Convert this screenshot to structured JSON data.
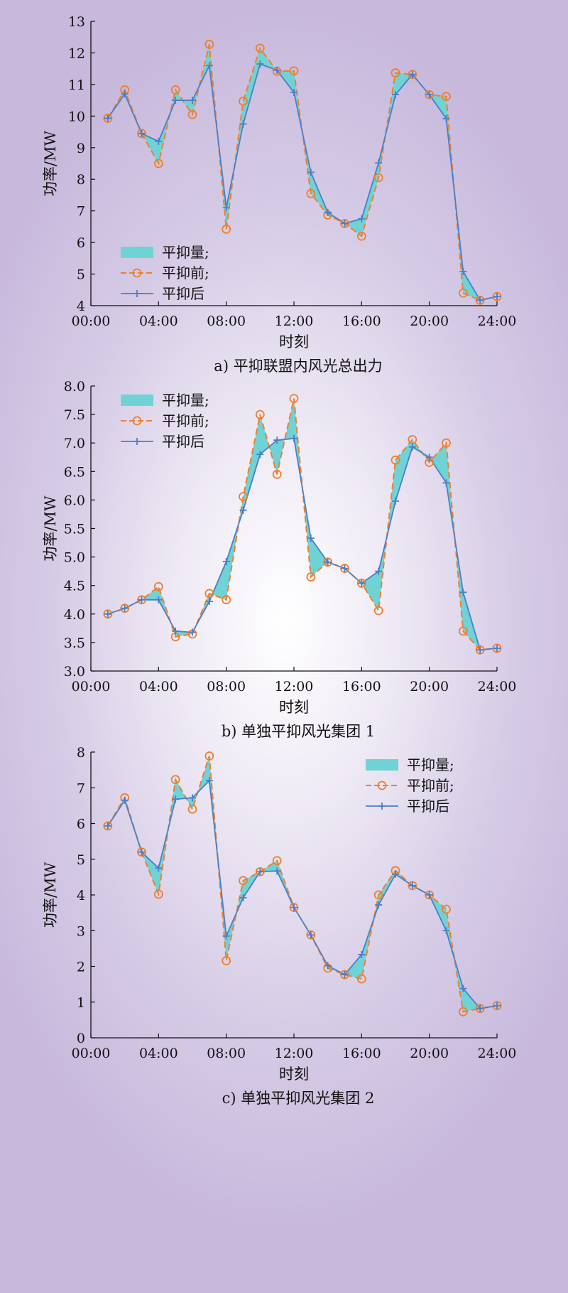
{
  "colors": {
    "before": "#ef7f2e",
    "after": "#4a7fc7",
    "fill": "#6fd3d6",
    "axis": "#111111"
  },
  "chart_data": [
    {
      "type": "line",
      "caption": "a) 平抑联盟内风光总出力",
      "xlabel": "时刻",
      "ylabel": "功率/MW",
      "x_ticks": [
        "00:00",
        "04:00",
        "08:00",
        "12:00",
        "16:00",
        "20:00",
        "24:00"
      ],
      "y_ticks": [
        "4",
        "5",
        "6",
        "7",
        "8",
        "9",
        "10",
        "11",
        "12",
        "13"
      ],
      "xlim": [
        0,
        24
      ],
      "ylim": [
        4,
        13
      ],
      "legend_position": "middle-left",
      "legend": [
        "平抑量;",
        "平抑前;",
        "平抑后"
      ],
      "x": [
        1,
        2,
        3,
        4,
        5,
        6,
        7,
        8,
        9,
        10,
        11,
        12,
        13,
        14,
        15,
        16,
        17,
        18,
        19,
        20,
        21,
        22,
        23,
        24
      ],
      "series": [
        {
          "name": "平抑前",
          "values": [
            9.93,
            10.83,
            9.45,
            8.5,
            10.83,
            10.05,
            12.27,
            6.42,
            10.47,
            12.15,
            11.42,
            11.43,
            7.55,
            6.87,
            6.6,
            6.2,
            8.05,
            11.37,
            11.32,
            10.68,
            10.62,
            4.4,
            4.17,
            4.29
          ]
        },
        {
          "name": "平抑后",
          "values": [
            9.93,
            10.7,
            9.45,
            9.2,
            10.5,
            10.5,
            11.6,
            7.1,
            9.75,
            11.65,
            11.45,
            10.75,
            8.22,
            6.95,
            6.6,
            6.75,
            8.52,
            10.68,
            11.32,
            10.68,
            9.92,
            5.08,
            4.17,
            4.29
          ]
        }
      ]
    },
    {
      "type": "line",
      "caption": "b) 单独平抑风光集团 1",
      "xlabel": "时刻",
      "ylabel": "功率/MW",
      "x_ticks": [
        "00:00",
        "04:00",
        "08:00",
        "12:00",
        "16:00",
        "20:00",
        "24:00"
      ],
      "y_ticks": [
        "3.0",
        "3.5",
        "4.0",
        "4.5",
        "5.0",
        "5.5",
        "6.0",
        "6.5",
        "7.0",
        "7.5",
        "8.0"
      ],
      "xlim": [
        0,
        24
      ],
      "ylim": [
        3,
        8
      ],
      "legend_position": "top-left",
      "legend": [
        "平抑量;",
        "平抑前;",
        "平抑后"
      ],
      "x": [
        1,
        2,
        3,
        4,
        5,
        6,
        7,
        8,
        9,
        10,
        11,
        12,
        13,
        14,
        15,
        16,
        17,
        18,
        19,
        20,
        21,
        22,
        23,
        24
      ],
      "series": [
        {
          "name": "平抑前",
          "values": [
            4.0,
            4.1,
            4.25,
            4.48,
            3.6,
            3.65,
            4.36,
            4.25,
            6.06,
            7.5,
            6.45,
            7.78,
            4.65,
            4.91,
            4.8,
            4.54,
            4.06,
            6.7,
            7.06,
            6.66,
            7.0,
            3.7,
            3.37,
            3.4
          ]
        },
        {
          "name": "平抑后",
          "values": [
            4.0,
            4.1,
            4.25,
            4.25,
            3.7,
            3.68,
            4.22,
            4.92,
            5.82,
            6.8,
            7.05,
            7.08,
            5.33,
            4.91,
            4.8,
            4.54,
            4.75,
            5.98,
            6.93,
            6.75,
            6.3,
            4.38,
            3.37,
            3.4
          ]
        }
      ]
    },
    {
      "type": "line",
      "caption": "c) 单独平抑风光集团 2",
      "xlabel": "时刻",
      "ylabel": "功率/MW",
      "x_ticks": [
        "00:00",
        "04:00",
        "08:00",
        "12:00",
        "16:00",
        "20:00",
        "24:00"
      ],
      "y_ticks": [
        "0",
        "1",
        "2",
        "3",
        "4",
        "5",
        "6",
        "7",
        "8"
      ],
      "xlim": [
        0,
        24
      ],
      "ylim": [
        0,
        8
      ],
      "legend_position": "top-right",
      "legend": [
        "平抑量;",
        "平抑前;",
        "平抑后"
      ],
      "x": [
        1,
        2,
        3,
        4,
        5,
        6,
        7,
        8,
        9,
        10,
        11,
        12,
        13,
        14,
        15,
        16,
        17,
        18,
        19,
        20,
        21,
        22,
        23,
        24
      ],
      "series": [
        {
          "name": "平抑前",
          "values": [
            5.93,
            6.72,
            5.2,
            4.02,
            7.23,
            6.4,
            7.89,
            2.16,
            4.4,
            4.65,
            4.96,
            3.65,
            2.88,
            1.95,
            1.77,
            1.65,
            4.0,
            4.68,
            4.26,
            4.0,
            3.6,
            0.73,
            0.82,
            0.9
          ]
        },
        {
          "name": "平抑后",
          "values": [
            5.93,
            6.65,
            5.2,
            4.75,
            6.68,
            6.72,
            7.2,
            2.85,
            3.92,
            4.65,
            4.67,
            3.65,
            2.88,
            2.02,
            1.77,
            2.33,
            3.72,
            4.58,
            4.26,
            4.0,
            3.0,
            1.38,
            0.82,
            0.9
          ]
        }
      ]
    }
  ]
}
